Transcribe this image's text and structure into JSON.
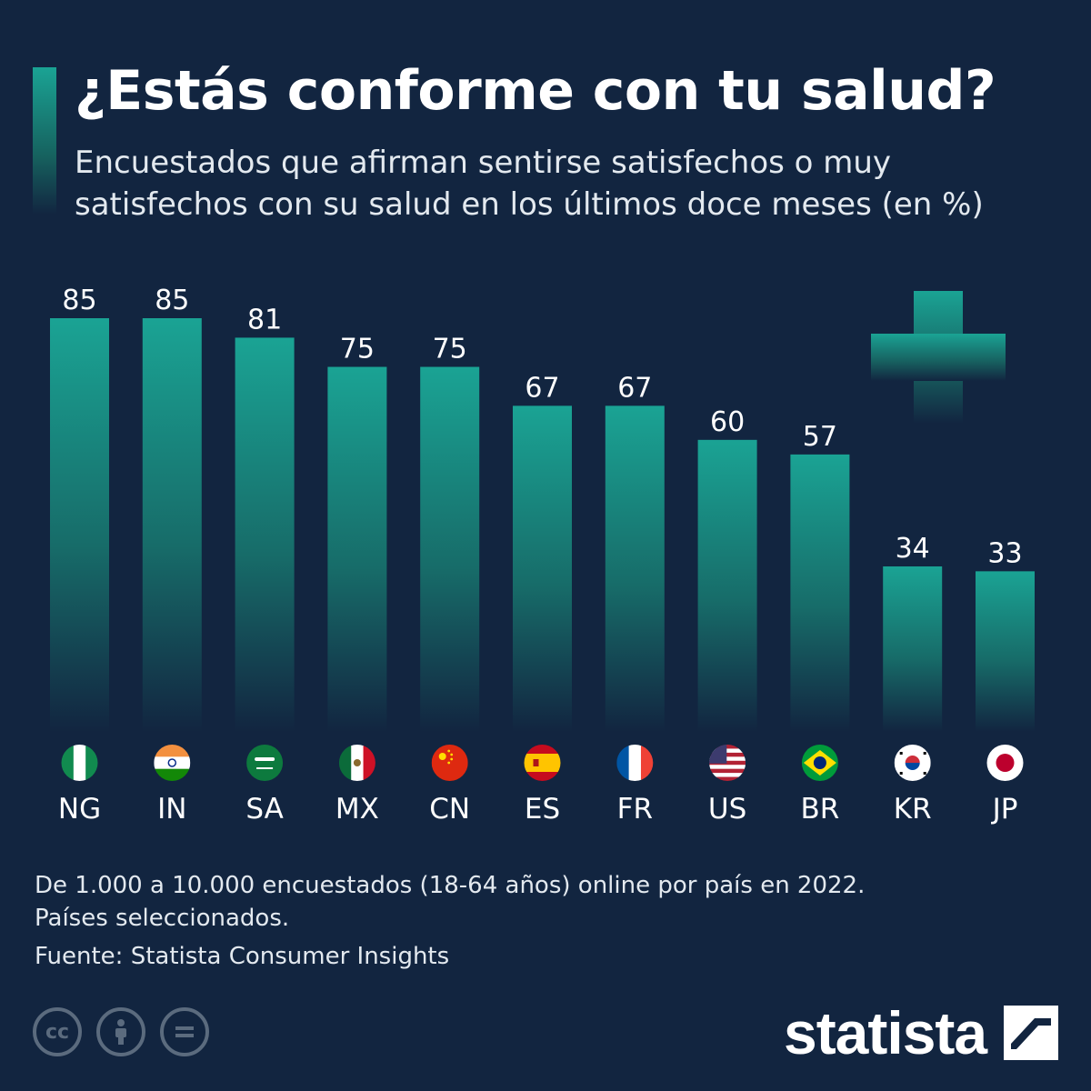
{
  "header": {
    "title": "¿Estás conforme con tu salud?",
    "subtitle": "Encuestados que afirman sentirse satisfechos o muy satisfechos con su salud en los últimos doce meses (en %)"
  },
  "chart_data": {
    "type": "bar",
    "categories": [
      "NG",
      "IN",
      "SA",
      "MX",
      "CN",
      "ES",
      "FR",
      "US",
      "BR",
      "KR",
      "JP"
    ],
    "values": [
      85,
      85,
      81,
      75,
      75,
      67,
      67,
      60,
      57,
      34,
      33
    ],
    "ylim": [
      0,
      85
    ],
    "grid": false,
    "title": "¿Estás conforme con tu salud?",
    "bar_color": "#1aa394",
    "flags": [
      "nigeria-flag",
      "india-flag",
      "saudi-arabia-flag",
      "mexico-flag",
      "china-flag",
      "spain-flag",
      "france-flag",
      "usa-flag",
      "brazil-flag",
      "south-korea-flag",
      "japan-flag"
    ]
  },
  "footer": {
    "note": "De 1.000 a 10.000 encuestados (18-64 años) online por país en 2022. Países seleccionados.",
    "source": "Fuente: Statista Consumer Insights",
    "brand": "statista",
    "license_icons": [
      "cc-icon",
      "attribution-icon",
      "no-derivatives-icon"
    ]
  },
  "colors": {
    "background": "#122540",
    "accent": "#1aa394",
    "muted": "#5b6b7e"
  }
}
